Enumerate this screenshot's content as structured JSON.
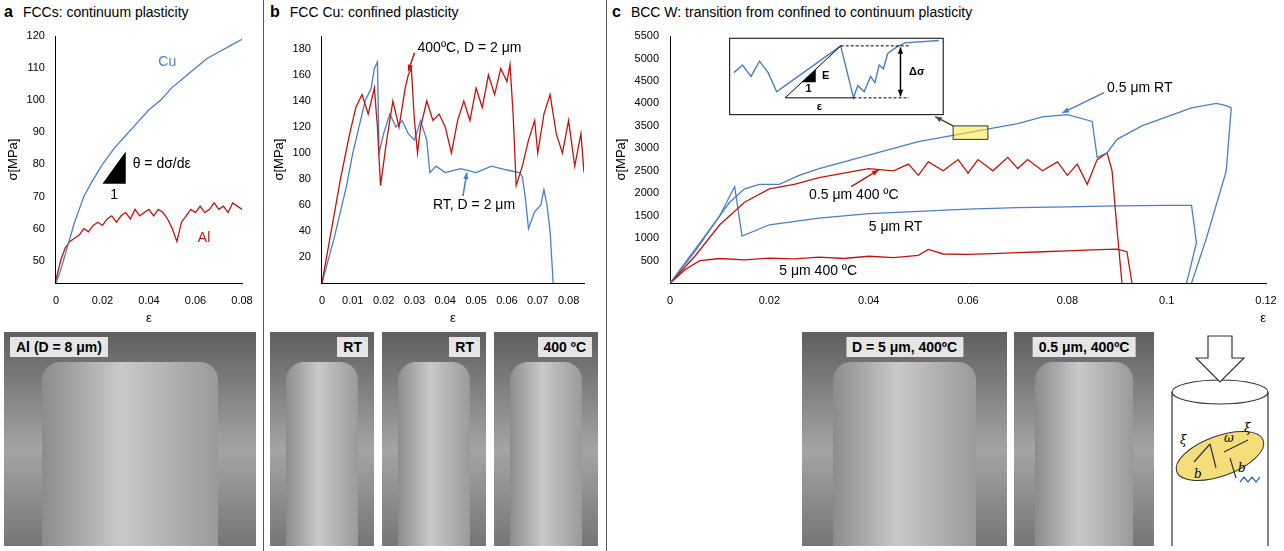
{
  "panel_letters": [
    "a",
    "b",
    "c"
  ],
  "chart_data": [
    {
      "type": "line",
      "title": "FCCs: continuum plasticity",
      "x_label": "ε",
      "y_label": "σ[MPa]",
      "xlim": [
        0,
        0.08
      ],
      "xticks": [
        0,
        0.02,
        0.04,
        0.06,
        0.08
      ],
      "ylim": [
        43,
        120
      ],
      "yticks": [
        50,
        60,
        70,
        80,
        90,
        100,
        110,
        120
      ],
      "grid": false,
      "annotations": [
        "θ = dσ/dε",
        "1"
      ],
      "series": [
        {
          "name": "Cu",
          "color": "#4a7fc1",
          "x": [
            0,
            0.002,
            0.004,
            0.006,
            0.008,
            0.01,
            0.012,
            0.015,
            0.02,
            0.025,
            0.03,
            0.035,
            0.04,
            0.045,
            0.05,
            0.055,
            0.06,
            0.065,
            0.07,
            0.075,
            0.08
          ],
          "values": [
            43,
            47,
            52,
            57,
            62,
            66,
            70,
            74,
            80,
            85,
            89,
            93,
            97,
            100,
            104,
            107,
            110,
            113,
            115,
            117,
            119
          ]
        },
        {
          "name": "Al",
          "color": "#c0140f",
          "x": [
            0,
            0.002,
            0.004,
            0.006,
            0.008,
            0.01,
            0.012,
            0.014,
            0.016,
            0.018,
            0.02,
            0.022,
            0.024,
            0.026,
            0.028,
            0.03,
            0.032,
            0.034,
            0.036,
            0.038,
            0.04,
            0.042,
            0.044,
            0.046,
            0.048,
            0.05,
            0.052,
            0.054,
            0.056,
            0.058,
            0.06,
            0.062,
            0.064,
            0.066,
            0.068,
            0.07,
            0.072,
            0.074,
            0.076,
            0.078,
            0.08
          ],
          "values": [
            44,
            50,
            54,
            56,
            57,
            58,
            60,
            59,
            61,
            62,
            61,
            63,
            64,
            62,
            64,
            65,
            63,
            66,
            64,
            65,
            66,
            64,
            66,
            65,
            63,
            60,
            56,
            62,
            64,
            66,
            65,
            67,
            65,
            66,
            68,
            66,
            67,
            65,
            68,
            67,
            66
          ]
        }
      ]
    },
    {
      "type": "line",
      "title": "FCC Cu: confined plasticity",
      "x_label": "ε",
      "y_label": "σ[MPa]",
      "xlim": [
        0,
        0.085
      ],
      "xticks": [
        0,
        0.01,
        0.02,
        0.03,
        0.04,
        0.05,
        0.06,
        0.07,
        0.08
      ],
      "ylim": [
        0,
        190
      ],
      "yticks": [
        20,
        40,
        60,
        80,
        100,
        120,
        140,
        160,
        180
      ],
      "grid": false,
      "annotations": [],
      "series": [
        {
          "name": "400ºC, D = 2 μm",
          "color": "#c0140f",
          "x": [
            0,
            0.003,
            0.006,
            0.009,
            0.011,
            0.013,
            0.015,
            0.017,
            0.018,
            0.019,
            0.021,
            0.023,
            0.025,
            0.027,
            0.028,
            0.029,
            0.03,
            0.031,
            0.032,
            0.034,
            0.036,
            0.038,
            0.04,
            0.042,
            0.044,
            0.046,
            0.048,
            0.05,
            0.052,
            0.054,
            0.056,
            0.058,
            0.06,
            0.061,
            0.062,
            0.063,
            0.065,
            0.067,
            0.069,
            0.07,
            0.072,
            0.074,
            0.076,
            0.078,
            0.08,
            0.082,
            0.084,
            0.085
          ],
          "values": [
            0,
            40,
            80,
            115,
            135,
            145,
            130,
            150,
            120,
            75,
            110,
            140,
            120,
            150,
            160,
            165,
            125,
            100,
            120,
            140,
            125,
            130,
            120,
            100,
            125,
            140,
            125,
            150,
            135,
            160,
            145,
            165,
            155,
            168,
            130,
            75,
            90,
            110,
            125,
            100,
            130,
            145,
            115,
            100,
            125,
            90,
            115,
            85
          ]
        },
        {
          "name": "RT, D = 2 μm",
          "color": "#4a7fc1",
          "x": [
            0,
            0.004,
            0.008,
            0.01,
            0.012,
            0.014,
            0.016,
            0.017,
            0.018,
            0.0185,
            0.02,
            0.022,
            0.024,
            0.026,
            0.028,
            0.03,
            0.032,
            0.034,
            0.035,
            0.037,
            0.04,
            0.045,
            0.05,
            0.055,
            0.06,
            0.064,
            0.065,
            0.066,
            0.067,
            0.069,
            0.071,
            0.072,
            0.073,
            0.074,
            0.075
          ],
          "values": [
            0,
            35,
            75,
            100,
            120,
            140,
            150,
            165,
            170,
            100,
            115,
            130,
            120,
            125,
            115,
            110,
            125,
            110,
            85,
            90,
            85,
            88,
            85,
            90,
            87,
            85,
            82,
            65,
            42,
            55,
            60,
            72,
            60,
            40,
            0
          ]
        }
      ]
    },
    {
      "type": "line",
      "title": "BCC W: transition from confined to continuum plasticity",
      "x_label": "ε",
      "y_label": "σ[MPa]",
      "xlim": [
        0,
        0.12
      ],
      "xticks": [
        0,
        0.02,
        0.04,
        0.06,
        0.08,
        0.1,
        0.12
      ],
      "ylim": [
        0,
        5500
      ],
      "yticks": [
        500,
        1000,
        1500,
        2000,
        2500,
        3000,
        3500,
        4000,
        4500,
        5000,
        5500
      ],
      "grid": false,
      "annotations": [],
      "series": [
        {
          "name": "0.5 μm RT",
          "color": "#4a7fc1",
          "x": [
            0,
            0.004,
            0.008,
            0.012,
            0.015,
            0.018,
            0.022,
            0.026,
            0.03,
            0.035,
            0.04,
            0.045,
            0.05,
            0.055,
            0.06,
            0.065,
            0.07,
            0.075,
            0.08,
            0.085,
            0.086,
            0.088,
            0.09,
            0.095,
            0.1,
            0.105,
            0.11,
            0.112,
            0.113,
            0.112,
            0.108,
            0.105
          ],
          "values": [
            0,
            600,
            1200,
            1800,
            2100,
            2200,
            2200,
            2400,
            2550,
            2700,
            2850,
            3000,
            3150,
            3250,
            3350,
            3450,
            3550,
            3700,
            3750,
            3600,
            2800,
            2900,
            3200,
            3500,
            3700,
            3900,
            4000,
            3950,
            3900,
            2500,
            1000,
            0
          ]
        },
        {
          "name": "0.5 μm 400 ºC",
          "color": "#c0140f",
          "x": [
            0,
            0.005,
            0.01,
            0.015,
            0.02,
            0.025,
            0.03,
            0.035,
            0.04,
            0.045,
            0.048,
            0.05,
            0.052,
            0.055,
            0.058,
            0.06,
            0.062,
            0.065,
            0.068,
            0.07,
            0.072,
            0.075,
            0.078,
            0.08,
            0.082,
            0.084,
            0.086,
            0.088,
            0.089,
            0.09,
            0.091
          ],
          "values": [
            0,
            600,
            1300,
            1800,
            2100,
            2200,
            2350,
            2450,
            2550,
            2500,
            2650,
            2400,
            2700,
            2500,
            2750,
            2450,
            2750,
            2500,
            2800,
            2550,
            2750,
            2500,
            2700,
            2400,
            2650,
            2200,
            2750,
            2900,
            2500,
            1200,
            0
          ]
        },
        {
          "name": "5 μm RT",
          "color": "#4a7fc1",
          "x": [
            0,
            0.005,
            0.01,
            0.013,
            0.0145,
            0.02,
            0.03,
            0.04,
            0.05,
            0.06,
            0.07,
            0.08,
            0.09,
            0.1,
            0.105,
            0.106,
            0.104
          ],
          "values": [
            0,
            700,
            1500,
            2150,
            1050,
            1300,
            1450,
            1550,
            1600,
            1650,
            1680,
            1700,
            1720,
            1730,
            1730,
            900,
            0
          ]
        },
        {
          "name": "5 μm 400 ºC",
          "color": "#c0140f",
          "x": [
            0,
            0.003,
            0.006,
            0.01,
            0.015,
            0.02,
            0.025,
            0.03,
            0.035,
            0.04,
            0.045,
            0.05,
            0.052,
            0.055,
            0.06,
            0.065,
            0.07,
            0.075,
            0.08,
            0.085,
            0.09,
            0.092,
            0.093
          ],
          "values": [
            0,
            300,
            500,
            550,
            520,
            560,
            540,
            580,
            550,
            600,
            570,
            620,
            750,
            650,
            640,
            660,
            680,
            700,
            720,
            740,
            760,
            700,
            0
          ]
        }
      ]
    }
  ],
  "inset": {
    "labels": [
      "E",
      "1",
      "Δσ",
      "ε"
    ]
  },
  "images": [
    [
      "Al (D = 8 μm)"
    ],
    [
      "RT",
      "RT",
      "400 ºC"
    ],
    [
      "D = 5 μm, 400ºC",
      "0.5 μm, 400ºC"
    ]
  ],
  "schematic": {
    "labels": [
      "ξ",
      "b",
      "ω",
      "ξ",
      "b"
    ]
  }
}
